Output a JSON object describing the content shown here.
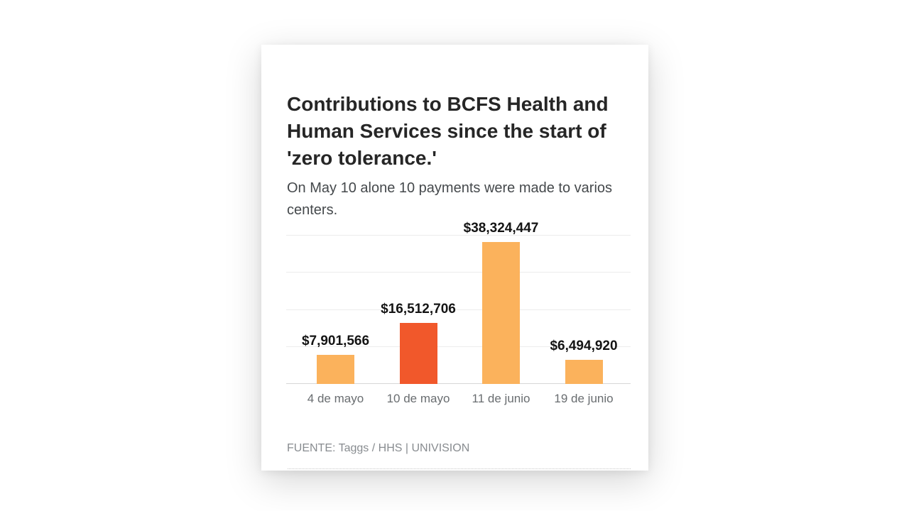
{
  "page": {
    "background": "#ffffff"
  },
  "colors": {
    "bar_default": "#FBB25C",
    "bar_highlight": "#F1582B",
    "gridline": "#ececec",
    "axis_line": "#d7d7d7",
    "title_text": "#262626",
    "subtitle_text": "#45494c",
    "value_label_text": "#141414",
    "axis_label_text": "#696d70",
    "source_text": "#888c90"
  },
  "chart_data": {
    "type": "bar",
    "title": "Contributions to BCFS Health and Human Services since the start of 'zero tolerance.'",
    "subtitle": "On May 10 alone 10 payments were made to varios centers.",
    "categories": [
      "4 de mayo",
      "10 de mayo",
      "11 de junio",
      "19 de junio"
    ],
    "values": [
      7901566,
      16512706,
      38324447,
      6494920
    ],
    "value_labels": [
      "$7,901,566",
      "$16,512,706",
      "$38,324,447",
      "$6,494,920"
    ],
    "bar_colors": [
      "#FBB25C",
      "#F1582B",
      "#FBB25C",
      "#FBB25C"
    ],
    "ylim": [
      0,
      40000000
    ],
    "gridline_interval": 10000000,
    "grid": true,
    "legend": false,
    "xlabel": "",
    "ylabel": "",
    "source": "FUENTE: Taggs / HHS | UNIVISION"
  }
}
